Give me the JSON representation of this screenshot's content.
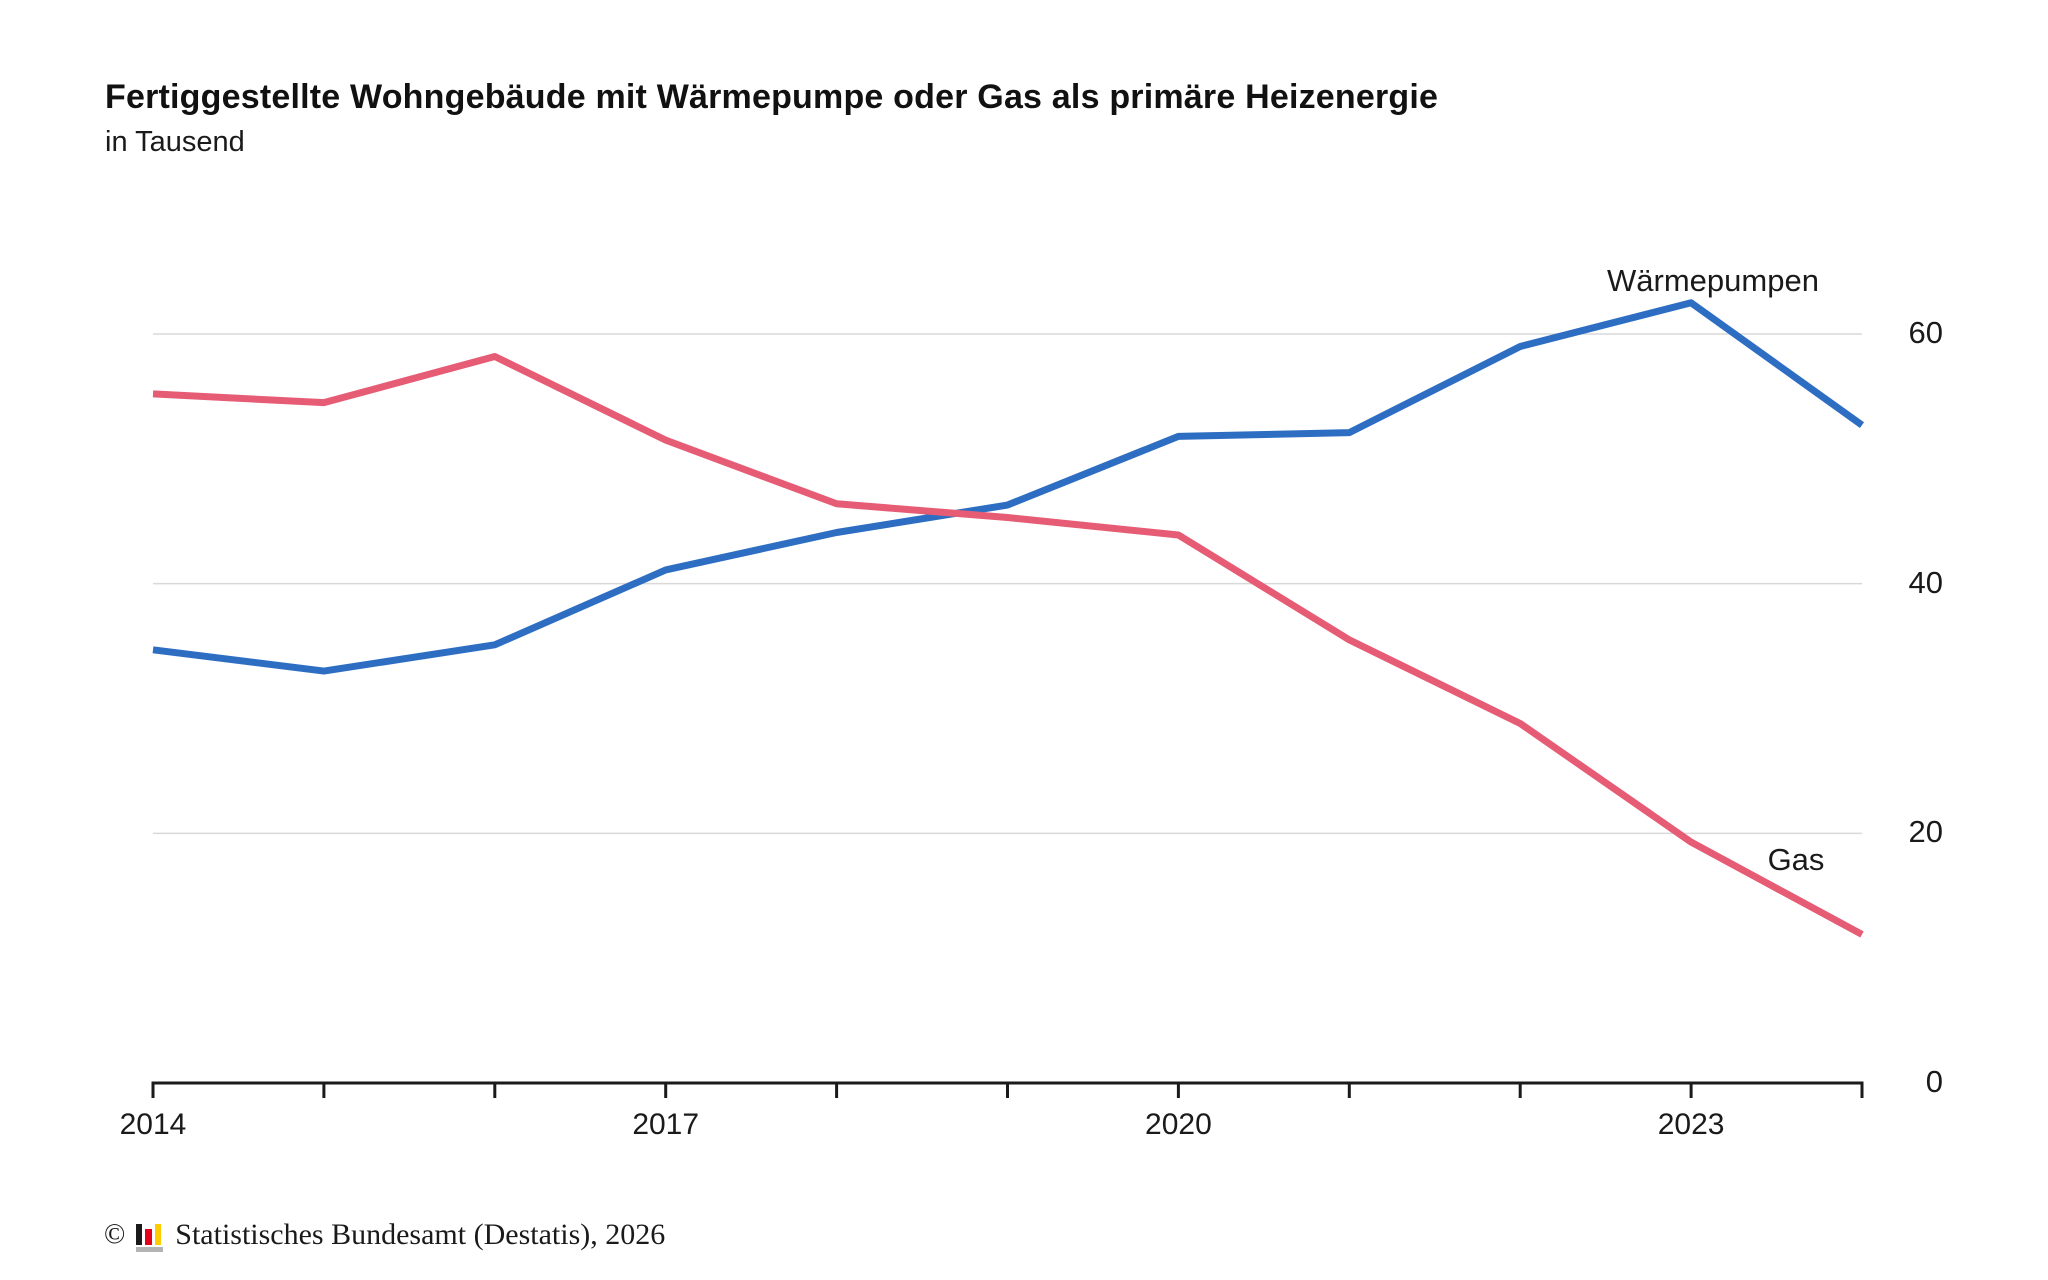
{
  "header": {
    "title": "Fertiggestellte Wohngebäude mit Wärmepumpe oder Gas als primäre Heizenergie",
    "subtitle": "in Tausend"
  },
  "chart_data": {
    "type": "line",
    "x": [
      2014,
      2015,
      2016,
      2017,
      2018,
      2019,
      2020,
      2021,
      2022,
      2023,
      2024
    ],
    "xtick_labels": [
      "2014",
      "2017",
      "2020",
      "2023"
    ],
    "yticks": [
      0,
      20,
      40,
      60
    ],
    "ylim": [
      0,
      65
    ],
    "ylabel": "in Tausend",
    "grid": "horizontal-light",
    "legend_position": "inline-labels-at-line",
    "series": [
      {
        "name": "Wärmepumpen",
        "color": "#2d6ec3",
        "values": [
          34.7,
          33.0,
          35.1,
          41.1,
          44.1,
          46.3,
          51.8,
          52.1,
          59.0,
          62.5,
          52.7
        ]
      },
      {
        "name": "Gas",
        "color": "#e65c74",
        "values": [
          55.2,
          54.5,
          58.2,
          51.5,
          46.4,
          45.3,
          43.9,
          35.5,
          28.8,
          19.3,
          11.9
        ]
      }
    ]
  },
  "axis_colors": {
    "axis": "#1a1a1a",
    "grid": "#d9d9d9"
  },
  "footer": {
    "copyright_symbol": "©",
    "source": "Statistisches Bundesamt (Destatis), 2026",
    "logo_colors": {
      "bar1": "#1a1a1a",
      "bar2": "#e2001a",
      "bar3": "#ffcc00",
      "base": "#b3b3b3"
    }
  }
}
